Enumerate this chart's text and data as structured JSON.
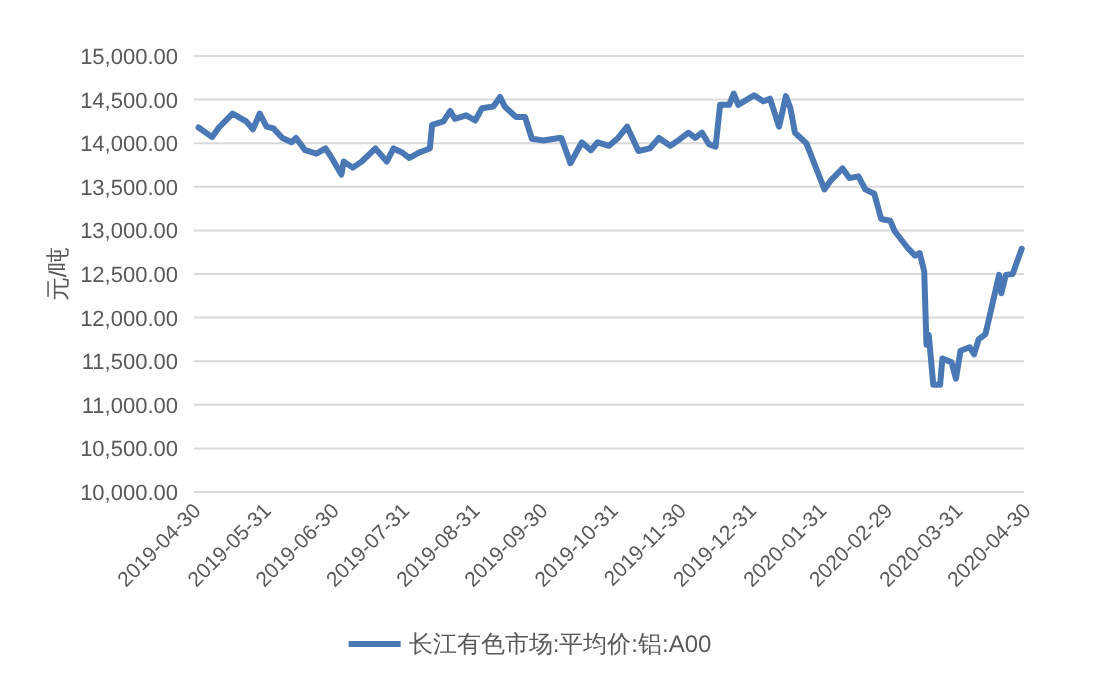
{
  "chart_data": {
    "type": "line",
    "ylabel": "元/吨",
    "x": [
      "2019-05-02",
      "2019-05-08",
      "2019-05-11",
      "2019-05-17",
      "2019-05-23",
      "2019-05-26",
      "2019-05-29",
      "2019-06-01",
      "2019-06-04",
      "2019-06-08",
      "2019-06-12",
      "2019-06-14",
      "2019-06-18",
      "2019-06-23",
      "2019-06-27",
      "2019-06-30",
      "2019-07-04",
      "2019-07-05",
      "2019-07-09",
      "2019-07-13",
      "2019-07-19",
      "2019-07-24",
      "2019-07-27",
      "2019-07-31",
      "2019-08-03",
      "2019-08-07",
      "2019-08-12",
      "2019-08-13",
      "2019-08-18",
      "2019-08-21",
      "2019-08-23",
      "2019-08-28",
      "2019-09-01",
      "2019-09-04",
      "2019-09-09",
      "2019-09-12",
      "2019-09-14",
      "2019-09-19",
      "2019-09-23",
      "2019-09-26",
      "2019-10-01",
      "2019-10-08",
      "2019-10-09",
      "2019-10-13",
      "2019-10-18",
      "2019-10-22",
      "2019-10-25",
      "2019-10-30",
      "2019-11-03",
      "2019-11-07",
      "2019-11-12",
      "2019-11-17",
      "2019-11-21",
      "2019-11-26",
      "2019-11-30",
      "2019-12-04",
      "2019-12-07",
      "2019-12-10",
      "2019-12-13",
      "2019-12-16",
      "2019-12-18",
      "2019-12-22",
      "2019-12-24",
      "2019-12-26",
      "2020-01-02",
      "2020-01-06",
      "2020-01-09",
      "2020-01-13",
      "2020-01-16",
      "2020-01-18",
      "2020-01-20",
      "2020-01-25",
      "2020-02-02",
      "2020-02-05",
      "2020-02-10",
      "2020-02-13",
      "2020-02-17",
      "2020-02-20",
      "2020-02-24",
      "2020-02-27",
      "2020-03-02",
      "2020-03-04",
      "2020-03-10",
      "2020-03-13",
      "2020-03-15",
      "2020-03-17",
      "2020-03-18",
      "2020-03-19",
      "2020-03-21",
      "2020-03-24",
      "2020-03-25",
      "2020-03-29",
      "2020-03-31",
      "2020-04-02",
      "2020-04-06",
      "2020-04-08",
      "2020-04-10",
      "2020-04-13",
      "2020-04-17",
      "2020-04-19",
      "2020-04-20",
      "2020-04-22",
      "2020-04-25",
      "2020-04-29"
    ],
    "series": [
      {
        "name": "长江有色市场:平均价:铝:A00",
        "color": "#4a78b5",
        "values": [
          14180,
          14070,
          14180,
          14340,
          14250,
          14160,
          14340,
          14190,
          14170,
          14060,
          14010,
          14060,
          13920,
          13880,
          13940,
          13820,
          13640,
          13790,
          13720,
          13790,
          13940,
          13790,
          13940,
          13890,
          13830,
          13890,
          13940,
          14210,
          14250,
          14370,
          14280,
          14320,
          14260,
          14400,
          14420,
          14530,
          14420,
          14300,
          14300,
          14050,
          14030,
          14060,
          14060,
          13770,
          14010,
          13920,
          14010,
          13970,
          14060,
          14190,
          13910,
          13940,
          14060,
          13970,
          14040,
          14120,
          14060,
          14120,
          13990,
          13960,
          14440,
          14440,
          14570,
          14440,
          14550,
          14480,
          14510,
          14190,
          14540,
          14400,
          14120,
          14000,
          13470,
          13580,
          13710,
          13600,
          13620,
          13470,
          13420,
          13130,
          13110,
          12990,
          12790,
          12710,
          12740,
          12530,
          11690,
          11800,
          11230,
          11230,
          11530,
          11490,
          11300,
          11620,
          11660,
          11580,
          11750,
          11810,
          12260,
          12490,
          12280,
          12490,
          12500,
          12790
        ]
      }
    ],
    "xlim": [
      "2019-04-30",
      "2020-04-30"
    ],
    "xticks": [
      "2019-04-30",
      "2019-05-31",
      "2019-06-30",
      "2019-07-31",
      "2019-08-31",
      "2019-09-30",
      "2019-10-31",
      "2019-11-30",
      "2019-12-31",
      "2020-01-31",
      "2020-02-29",
      "2020-03-31",
      "2020-04-30"
    ],
    "ylim": [
      10000,
      15000
    ],
    "yticks": [
      {
        "value": 10000,
        "label": "10,000.00"
      },
      {
        "value": 10500,
        "label": "10,500.00"
      },
      {
        "value": 11000,
        "label": "11,000.00"
      },
      {
        "value": 11500,
        "label": "11,500.00"
      },
      {
        "value": 12000,
        "label": "12,000.00"
      },
      {
        "value": 12500,
        "label": "12,500.00"
      },
      {
        "value": 13000,
        "label": "13,000.00"
      },
      {
        "value": 13500,
        "label": "13,500.00"
      },
      {
        "value": 14000,
        "label": "14,000.00"
      },
      {
        "value": 14500,
        "label": "14,500.00"
      },
      {
        "value": 15000,
        "label": "15,000.00"
      }
    ],
    "grid": "y",
    "legend": "bottom"
  }
}
